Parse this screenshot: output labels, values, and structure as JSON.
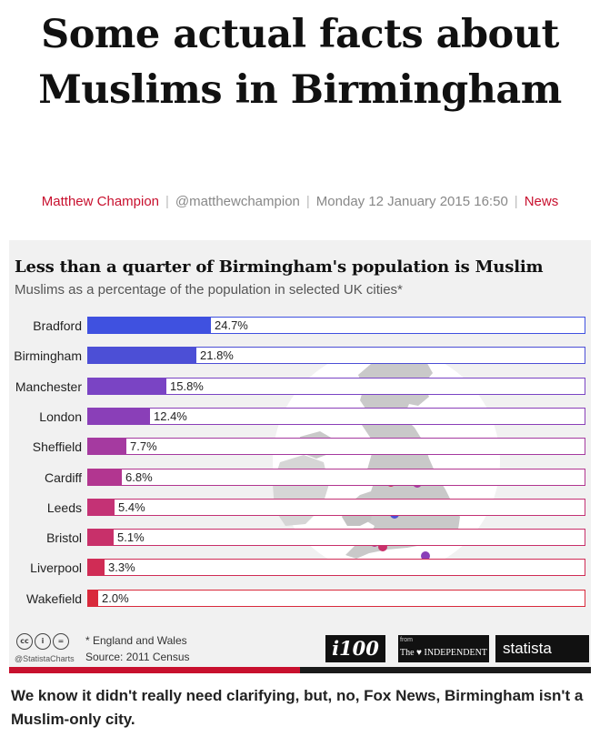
{
  "article": {
    "headline": "Some actual facts about Muslims in Birmingham",
    "author": "Matthew Champion",
    "handle": "@matthewchampion",
    "date": "Monday 12 January 2015 16:50",
    "section": "News",
    "caption": "We know it didn't really need clarifying, but, no, Fox News, Birmingham isn't a Muslim-only city."
  },
  "chart_data": {
    "type": "bar",
    "orientation": "horizontal",
    "title": "Less than a quarter of Birmingham's population is Muslim",
    "subtitle": "Muslims as a percentage of the population in selected UK cities*",
    "categories": [
      "Bradford",
      "Birmingham",
      "Manchester",
      "London",
      "Sheffield",
      "Cardiff",
      "Leeds",
      "Bristol",
      "Liverpool",
      "Wakefield"
    ],
    "values": [
      24.7,
      21.8,
      15.8,
      12.4,
      7.7,
      6.8,
      5.4,
      5.1,
      3.3,
      2.0
    ],
    "value_labels": [
      "24.7%",
      "21.8%",
      "15.8%",
      "12.4%",
      "7.7%",
      "6.8%",
      "5.4%",
      "5.1%",
      "3.3%",
      "2.0%"
    ],
    "colors": [
      "#3f51e0",
      "#4c4fd6",
      "#7a44c4",
      "#8a3fb8",
      "#a53aa0",
      "#b23690",
      "#c43275",
      "#c8306a",
      "#d02c55",
      "#d92a3c"
    ],
    "xlim": [
      0,
      100
    ],
    "grid": false,
    "footnote": "* England and Wales",
    "source": "Source: 2011 Census"
  },
  "footer": {
    "handle": "@StatistaCharts",
    "brand_i100": "i100",
    "from": "from",
    "independent": "The ♥ INDEPENDENT",
    "statista": "statista"
  }
}
